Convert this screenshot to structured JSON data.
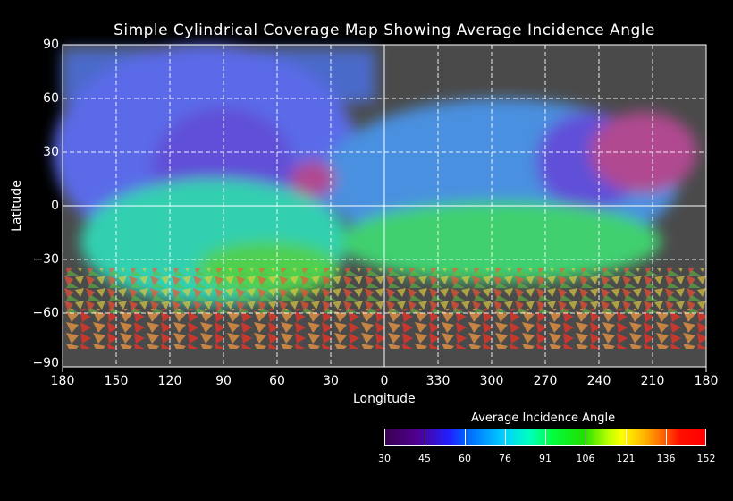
{
  "title": "Simple Cylindrical Coverage Map Showing Average Incidence Angle",
  "x_axis": {
    "label": "Longitude",
    "ticks": [
      "180",
      "150",
      "120",
      "90",
      "60",
      "30",
      "0",
      "330",
      "300",
      "270",
      "240",
      "210",
      "180"
    ]
  },
  "y_axis": {
    "label": "Latitude",
    "ticks": [
      "90",
      "60",
      "30",
      "0",
      "−30",
      "−60",
      "−90"
    ]
  },
  "colorbar": {
    "title": "Average Incidence Angle",
    "ticks": [
      "30",
      "45",
      "60",
      "76",
      "91",
      "106",
      "121",
      "136",
      "152"
    ],
    "range": [
      30,
      152
    ]
  },
  "chart_data": {
    "type": "heatmap",
    "title": "Simple Cylindrical Coverage Map Showing Average Incidence Angle",
    "xlabel": "Longitude",
    "ylabel": "Latitude",
    "xlim": [
      180,
      -180
    ],
    "ylim": [
      -90,
      90
    ],
    "grid": true,
    "value_range": [
      30,
      152
    ]
  }
}
